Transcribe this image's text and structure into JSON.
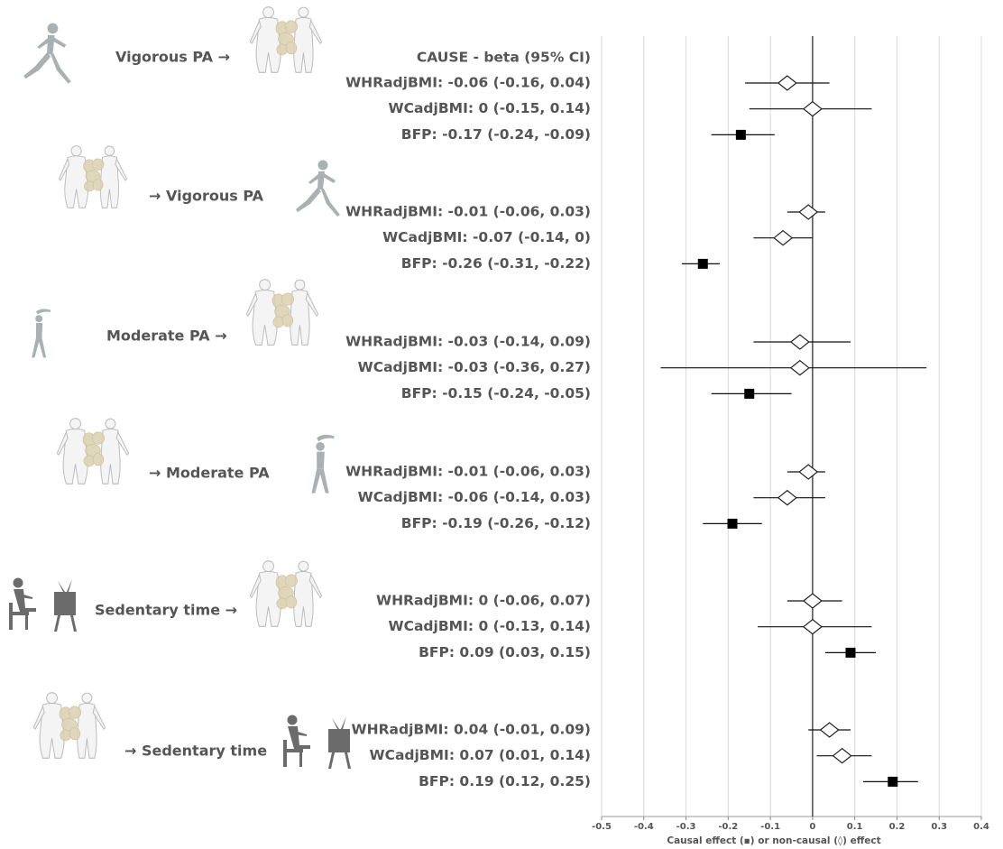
{
  "chart_data": {
    "type": "forest",
    "column_title": "CAUSE - beta (95% CI)",
    "x_label": "Causal effect (▪) or non-causal (◊) effect",
    "xlim": [
      -0.5,
      0.4
    ],
    "xticks": [
      -0.5,
      -0.4,
      -0.3,
      -0.2,
      -0.1,
      0,
      0.1,
      0.2,
      0.3,
      0.4
    ],
    "grid": true,
    "groups": [
      {
        "label": "Vigorous PA →",
        "rows": [
          {
            "label": "WHRadjBMI: -0.06 (-0.16, 0.04)",
            "value": -0.06,
            "lo": -0.16,
            "hi": 0.04,
            "causal": false
          },
          {
            "label": "WCadjBMI: 0 (-0.15, 0.14)",
            "value": 0,
            "lo": -0.15,
            "hi": 0.14,
            "causal": false
          },
          {
            "label": "BFP: -0.17 (-0.24, -0.09)",
            "value": -0.17,
            "lo": -0.24,
            "hi": -0.09,
            "causal": true
          }
        ]
      },
      {
        "label": "→ Vigorous PA",
        "rows": [
          {
            "label": "WHRadjBMI: -0.01 (-0.06, 0.03)",
            "value": -0.01,
            "lo": -0.06,
            "hi": 0.03,
            "causal": false
          },
          {
            "label": "WCadjBMI: -0.07 (-0.14, 0)",
            "value": -0.07,
            "lo": -0.14,
            "hi": 0,
            "causal": false
          },
          {
            "label": "BFP: -0.26 (-0.31, -0.22)",
            "value": -0.26,
            "lo": -0.31,
            "hi": -0.22,
            "causal": true
          }
        ]
      },
      {
        "label": "Moderate PA →",
        "rows": [
          {
            "label": "WHRadjBMI: -0.03 (-0.14, 0.09)",
            "value": -0.03,
            "lo": -0.14,
            "hi": 0.09,
            "causal": false
          },
          {
            "label": "WCadjBMI: -0.03 (-0.36, 0.27)",
            "value": -0.03,
            "lo": -0.36,
            "hi": 0.27,
            "causal": false
          },
          {
            "label": "BFP: -0.15 (-0.24, -0.05)",
            "value": -0.15,
            "lo": -0.24,
            "hi": -0.05,
            "causal": true
          }
        ]
      },
      {
        "label": "→ Moderate PA",
        "rows": [
          {
            "label": "WHRadjBMI: -0.01 (-0.06, 0.03)",
            "value": -0.01,
            "lo": -0.06,
            "hi": 0.03,
            "causal": false
          },
          {
            "label": "WCadjBMI: -0.06 (-0.14, 0.03)",
            "value": -0.06,
            "lo": -0.14,
            "hi": 0.03,
            "causal": false
          },
          {
            "label": "BFP: -0.19 (-0.26, -0.12)",
            "value": -0.19,
            "lo": -0.26,
            "hi": -0.12,
            "causal": true
          }
        ]
      },
      {
        "label": "Sedentary time →",
        "rows": [
          {
            "label": "WHRadjBMI: 0 (-0.06, 0.07)",
            "value": 0,
            "lo": -0.06,
            "hi": 0.07,
            "causal": false
          },
          {
            "label": "WCadjBMI: 0 (-0.13, 0.14)",
            "value": 0,
            "lo": -0.13,
            "hi": 0.14,
            "causal": false
          },
          {
            "label": "BFP: 0.09 (0.03, 0.15)",
            "value": 0.09,
            "lo": 0.03,
            "hi": 0.15,
            "causal": true
          }
        ]
      },
      {
        "label": "→ Sedentary time",
        "rows": [
          {
            "label": "WHRadjBMI: 0.04 (-0.01, 0.09)",
            "value": 0.04,
            "lo": -0.01,
            "hi": 0.09,
            "causal": false
          },
          {
            "label": "WCadjBMI: 0.07 (0.01, 0.14)",
            "value": 0.07,
            "lo": 0.01,
            "hi": 0.14,
            "causal": false
          },
          {
            "label": "BFP: 0.19 (0.12, 0.25)",
            "value": 0.19,
            "lo": 0.12,
            "hi": 0.25,
            "causal": true
          }
        ]
      }
    ]
  }
}
